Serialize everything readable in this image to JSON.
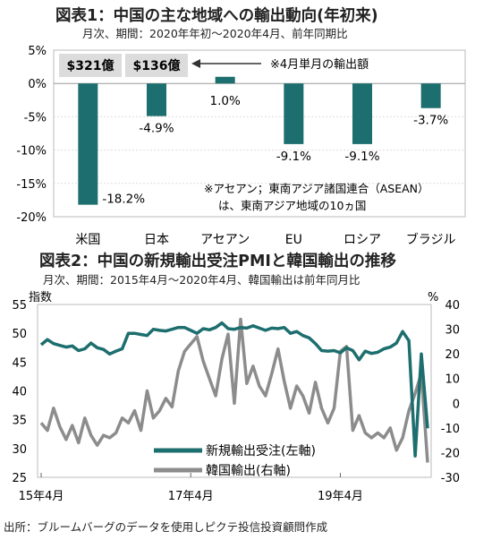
{
  "fig1": {
    "title": "図表1：中国の主な地域への輸出動向(年初来)",
    "subtitle": "月次、期間：2020年年初～2020年4月、前年同期比",
    "badges": [
      "$321億",
      "$136億"
    ],
    "callout": "※4月単月の輸出額",
    "note_line1": "※アセアン；東南アジア諸国連合（ASEAN）",
    "note_line2": "は、東南アジア地域の10ヵ国"
  },
  "fig2": {
    "title": "図表2：中国の新規輸出受注PMIと韓国輸出の推移",
    "subtitle": "月次、期間：2015年4月～2020年4月、韓国輸出は前年同月比",
    "left_unit": "指数",
    "right_unit": "%"
  },
  "source": "出所：ブルームバーグのデータを使用しピクテ投信投資顧問作成",
  "colors": {
    "bar": "#1d6e6e",
    "pmi": "#1d6e6e",
    "korea": "#8c8c8c"
  },
  "chart_data": [
    {
      "type": "bar",
      "title": "図表1：中国の主な地域への輸出動向(年初来)",
      "categories": [
        "米国",
        "日本",
        "アセアン",
        "EU",
        "ロシア",
        "ブラジル"
      ],
      "values": [
        -18.2,
        -4.9,
        1.0,
        -9.1,
        -9.1,
        -3.7
      ],
      "value_labels": [
        "-18.2%",
        "-4.9%",
        "1.0%",
        "-9.1%",
        "-9.1%",
        "-3.7%"
      ],
      "ylim": [
        -20,
        5
      ],
      "yticks": [
        5,
        0,
        -5,
        -10,
        -15,
        -20
      ],
      "ytick_labels": [
        "5%",
        "0%",
        "-5%",
        "-10%",
        "-15%",
        "-20%"
      ]
    },
    {
      "type": "line",
      "title": "図表2：中国の新規輸出受注PMIと韓国輸出の推移",
      "x_start": "2015-04",
      "x_end": "2020-04",
      "xtick_labels": [
        "15年4月",
        "17年4月",
        "19年4月"
      ],
      "left_axis": {
        "label": "指数",
        "ylim": [
          25,
          55
        ],
        "ticks": [
          25,
          30,
          35,
          40,
          45,
          50,
          55
        ]
      },
      "right_axis": {
        "label": "%",
        "ylim": [
          -30,
          40
        ],
        "ticks": [
          -30,
          -20,
          -10,
          0,
          10,
          20,
          30,
          40
        ]
      },
      "series": [
        {
          "name": "新規輸出受注(左軸)",
          "axis": "left",
          "values": [
            48.0,
            48.9,
            48.2,
            47.9,
            47.6,
            47.8,
            47.0,
            47.3,
            48.3,
            47.5,
            47.2,
            46.4,
            46.9,
            47.3,
            50.0,
            50.0,
            49.8,
            49.6,
            50.7,
            50.5,
            50.4,
            50.7,
            51.0,
            51.0,
            50.5,
            50.0,
            50.8,
            50.6,
            51.0,
            51.8,
            50.8,
            50.7,
            51.0,
            50.9,
            51.3,
            50.9,
            50.5,
            50.9,
            50.8,
            51.0,
            50.0,
            50.3,
            49.6,
            49.2,
            48.2,
            47.0,
            46.9,
            47.0,
            46.6,
            47.5,
            47.0,
            45.4,
            46.9,
            46.5,
            46.7,
            47.3,
            47.6,
            48.3,
            50.3,
            48.7,
            28.7,
            46.4,
            33.5
          ]
        },
        {
          "name": "韓国輸出(右軸)",
          "axis": "right",
          "values": [
            -8.0,
            -11.0,
            -2.0,
            -9.5,
            -14.7,
            -9.0,
            -16.0,
            -6.0,
            -13.0,
            -17.0,
            -13.0,
            -14.0,
            -12.0,
            -6.0,
            -8.0,
            -3.0,
            -11.0,
            5.0,
            -6.0,
            -3.0,
            2.0,
            -1.5,
            13.0,
            21.0,
            24.0,
            27.0,
            17.0,
            10.0,
            3.0,
            18.0,
            28.0,
            0.0,
            34.0,
            8.0,
            15.0,
            7.0,
            3.0,
            12.0,
            22.0,
            9.0,
            -2.0,
            7.0,
            3.0,
            -4.0,
            8.5,
            -2.0,
            -8.0,
            -2.0,
            21.0,
            23.0,
            -11.0,
            -5.0,
            -12.0,
            -14.0,
            -12.0,
            -14.0,
            -10.0,
            -19.0,
            -14.0,
            -3.0,
            4.0,
            12.0,
            -24.0
          ]
        }
      ]
    }
  ]
}
